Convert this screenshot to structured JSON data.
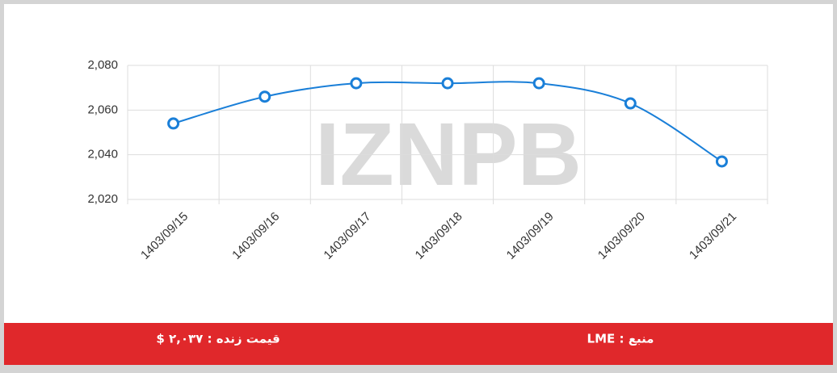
{
  "chart_data": {
    "type": "line",
    "categories": [
      "1403/09/15",
      "1403/09/16",
      "1403/09/17",
      "1403/09/18",
      "1403/09/19",
      "1403/09/20",
      "1403/09/21"
    ],
    "values": [
      2054,
      2066,
      2072,
      2072,
      2072,
      2063,
      2037
    ],
    "color": "#1a7fd8",
    "ylim": [
      2020,
      2080
    ],
    "yticks": [
      {
        "value": 2020,
        "label": "2,020"
      },
      {
        "value": 2040,
        "label": "2,040"
      },
      {
        "value": 2060,
        "label": "2,060"
      },
      {
        "value": 2080,
        "label": "2,080"
      }
    ],
    "grid": true,
    "watermark": "IZNPB"
  },
  "footer": {
    "price": "قیمت زنده : ۲,۰۳۷ $",
    "source": "منبع : LME"
  }
}
